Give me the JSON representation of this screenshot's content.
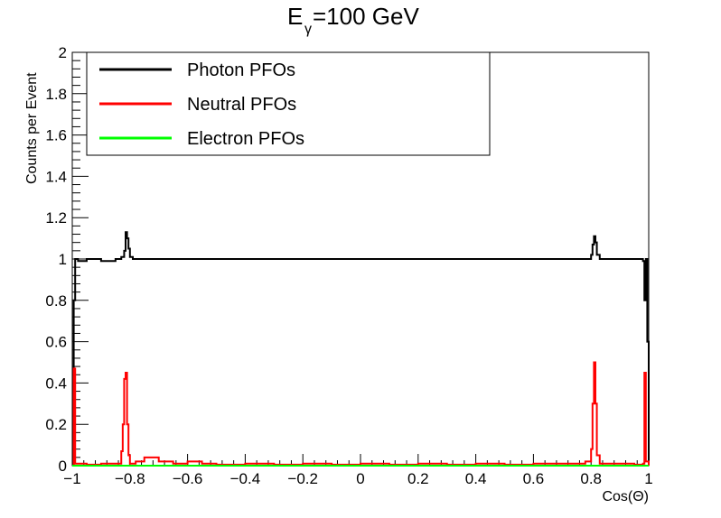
{
  "chart_data": {
    "type": "line",
    "title_main": "E",
    "title_sub": "γ",
    "title_rest": "=100 GeV",
    "xlabel": "Cos(Θ)",
    "ylabel": "Counts per Event",
    "xlim": [
      -1,
      1
    ],
    "ylim": [
      0,
      2
    ],
    "x_ticks": [
      -1,
      -0.8,
      -0.6,
      -0.4,
      -0.2,
      0,
      0.2,
      0.4,
      0.6,
      0.8,
      1
    ],
    "x_tick_labels": [
      "−1",
      "−0.8",
      "−0.6",
      "−0.4",
      "−0.2",
      "0",
      "0.2",
      "0.4",
      "0.6",
      "0.8",
      "1"
    ],
    "y_ticks": [
      0,
      0.2,
      0.4,
      0.6,
      0.8,
      1,
      1.2,
      1.4,
      1.6,
      1.8,
      2
    ],
    "y_tick_labels": [
      "0",
      "0.2",
      "0.4",
      "0.6",
      "0.8",
      "1",
      "1.2",
      "1.4",
      "1.6",
      "1.8",
      "2"
    ],
    "grid": false,
    "legend_placement": "top-left",
    "series": [
      {
        "name": "Photon PFOs",
        "color": "#000000",
        "points": [
          [
            -1.0,
            0.0
          ],
          [
            -0.995,
            0.8
          ],
          [
            -0.99,
            1.0
          ],
          [
            -0.98,
            0.99
          ],
          [
            -0.95,
            1.0
          ],
          [
            -0.9,
            0.99
          ],
          [
            -0.85,
            1.0
          ],
          [
            -0.83,
            1.01
          ],
          [
            -0.82,
            1.04
          ],
          [
            -0.815,
            1.13
          ],
          [
            -0.81,
            1.1
          ],
          [
            -0.805,
            1.05
          ],
          [
            -0.8,
            1.01
          ],
          [
            -0.79,
            1.0
          ],
          [
            -0.7,
            1.0
          ],
          [
            -0.6,
            1.0
          ],
          [
            -0.5,
            1.0
          ],
          [
            -0.4,
            1.0
          ],
          [
            -0.3,
            1.0
          ],
          [
            -0.2,
            1.0
          ],
          [
            -0.1,
            1.0
          ],
          [
            0.0,
            1.0
          ],
          [
            0.1,
            1.0
          ],
          [
            0.2,
            1.0
          ],
          [
            0.3,
            1.0
          ],
          [
            0.4,
            1.0
          ],
          [
            0.5,
            1.0
          ],
          [
            0.6,
            1.0
          ],
          [
            0.7,
            1.0
          ],
          [
            0.79,
            1.0
          ],
          [
            0.8,
            1.02
          ],
          [
            0.805,
            1.07
          ],
          [
            0.81,
            1.11
          ],
          [
            0.815,
            1.08
          ],
          [
            0.82,
            1.02
          ],
          [
            0.83,
            1.0
          ],
          [
            0.9,
            1.0
          ],
          [
            0.95,
            1.0
          ],
          [
            0.98,
            0.99
          ],
          [
            0.985,
            0.8
          ],
          [
            0.99,
            1.0
          ],
          [
            0.995,
            0.6
          ],
          [
            1.0,
            0.0
          ]
        ]
      },
      {
        "name": "Neutral PFOs",
        "color": "#ff0000",
        "points": [
          [
            -1.0,
            0.0
          ],
          [
            -0.995,
            0.47
          ],
          [
            -0.99,
            0.01
          ],
          [
            -0.95,
            0.005
          ],
          [
            -0.9,
            0.01
          ],
          [
            -0.85,
            0.01
          ],
          [
            -0.83,
            0.07
          ],
          [
            -0.825,
            0.2
          ],
          [
            -0.82,
            0.42
          ],
          [
            -0.815,
            0.45
          ],
          [
            -0.81,
            0.2
          ],
          [
            -0.805,
            0.05
          ],
          [
            -0.8,
            0.01
          ],
          [
            -0.78,
            0.02
          ],
          [
            -0.75,
            0.04
          ],
          [
            -0.7,
            0.02
          ],
          [
            -0.65,
            0.01
          ],
          [
            -0.6,
            0.02
          ],
          [
            -0.55,
            0.01
          ],
          [
            -0.5,
            0.005
          ],
          [
            -0.4,
            0.01
          ],
          [
            -0.3,
            0.005
          ],
          [
            -0.2,
            0.01
          ],
          [
            -0.1,
            0.005
          ],
          [
            0.0,
            0.01
          ],
          [
            0.1,
            0.005
          ],
          [
            0.2,
            0.01
          ],
          [
            0.3,
            0.005
          ],
          [
            0.4,
            0.01
          ],
          [
            0.5,
            0.005
          ],
          [
            0.6,
            0.01
          ],
          [
            0.7,
            0.01
          ],
          [
            0.78,
            0.02
          ],
          [
            0.8,
            0.08
          ],
          [
            0.805,
            0.3
          ],
          [
            0.81,
            0.5
          ],
          [
            0.815,
            0.3
          ],
          [
            0.82,
            0.05
          ],
          [
            0.83,
            0.01
          ],
          [
            0.9,
            0.01
          ],
          [
            0.95,
            0.005
          ],
          [
            0.98,
            0.01
          ],
          [
            0.985,
            0.45
          ],
          [
            0.99,
            0.02
          ],
          [
            1.0,
            0.0
          ]
        ]
      },
      {
        "name": "Electron PFOs",
        "color": "#00ff00",
        "points": [
          [
            -1.0,
            0.0
          ],
          [
            1.0,
            0.0
          ]
        ]
      }
    ]
  }
}
